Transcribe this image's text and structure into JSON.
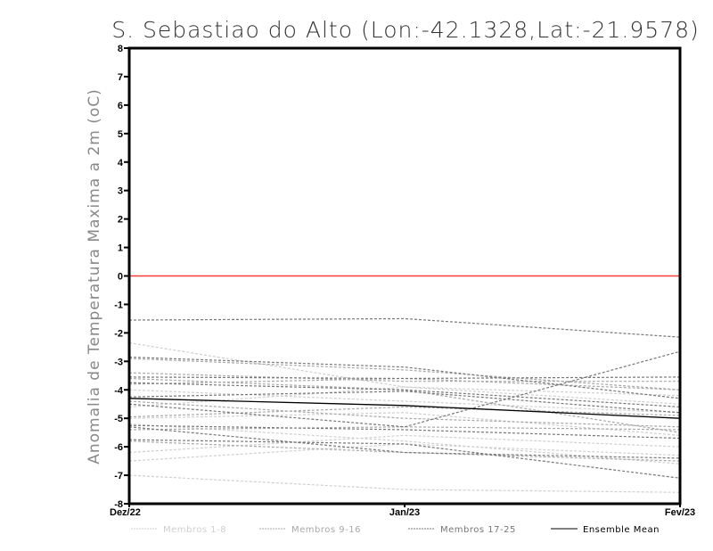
{
  "chart_data": {
    "type": "line",
    "title": "S. Sebastiao do Alto (Lon:-42.1328,Lat:-21.9578)",
    "xlabel": "",
    "ylabel": "Anomalia de Temperatura Maxima a 2m (oC)",
    "x": [
      "Dez/22",
      "Jan/23",
      "Fev/23"
    ],
    "ylim": [
      -8,
      8
    ],
    "yticks": [
      "-8",
      "-7",
      "-6",
      "-5",
      "-4",
      "-3",
      "-2",
      "-1",
      "0",
      "1",
      "2",
      "3",
      "4",
      "5",
      "6",
      "7",
      "8"
    ],
    "grid": false,
    "reference_line": {
      "value": 0,
      "color": "#ff3b3b"
    },
    "legend_position": "bottom",
    "groups": [
      {
        "name": "Membros 1-8",
        "color": "#cfcfcf",
        "dashed": true,
        "series": [
          [
            -2.35,
            -3.9,
            -4.5
          ],
          [
            -6.2,
            -5.6,
            -6.0
          ],
          [
            -6.5,
            -5.9,
            -6.3
          ],
          [
            -7.0,
            -7.5,
            -7.6
          ],
          [
            -4.0,
            -4.4,
            -4.8
          ],
          [
            -5.2,
            -5.8,
            -6.6
          ],
          [
            -4.6,
            -3.9,
            -4.2
          ],
          [
            -5.0,
            -4.8,
            -5.6
          ]
        ]
      },
      {
        "name": "Membros 9-16",
        "color": "#a8a8a8",
        "dashed": true,
        "series": [
          [
            -2.9,
            -3.3,
            -4.0
          ],
          [
            -3.4,
            -3.7,
            -3.7
          ],
          [
            -3.6,
            -4.0,
            -5.5
          ],
          [
            -4.4,
            -5.0,
            -5.3
          ],
          [
            -5.4,
            -5.3,
            -5.4
          ],
          [
            -5.8,
            -6.2,
            -6.5
          ],
          [
            -3.8,
            -3.6,
            -4.0
          ],
          [
            -4.95,
            -4.6,
            -4.9
          ]
        ]
      },
      {
        "name": "Membros 17-25",
        "color": "#777777",
        "dashed": true,
        "series": [
          [
            -1.55,
            -1.5,
            -2.15
          ],
          [
            -2.85,
            -3.2,
            -4.3
          ],
          [
            -3.55,
            -3.6,
            -3.55
          ],
          [
            -3.75,
            -4.0,
            -4.6
          ],
          [
            -4.5,
            -5.3,
            -2.65
          ],
          [
            -5.25,
            -5.4,
            -5.7
          ],
          [
            -5.75,
            -5.9,
            -7.1
          ],
          [
            -5.3,
            -6.2,
            -6.4
          ],
          [
            -4.25,
            -4.05,
            -4.8
          ]
        ]
      },
      {
        "name": "Ensemble Mean",
        "color": "#000000",
        "dashed": false,
        "series": [
          [
            -4.3,
            -4.55,
            -5.0
          ]
        ]
      }
    ]
  }
}
